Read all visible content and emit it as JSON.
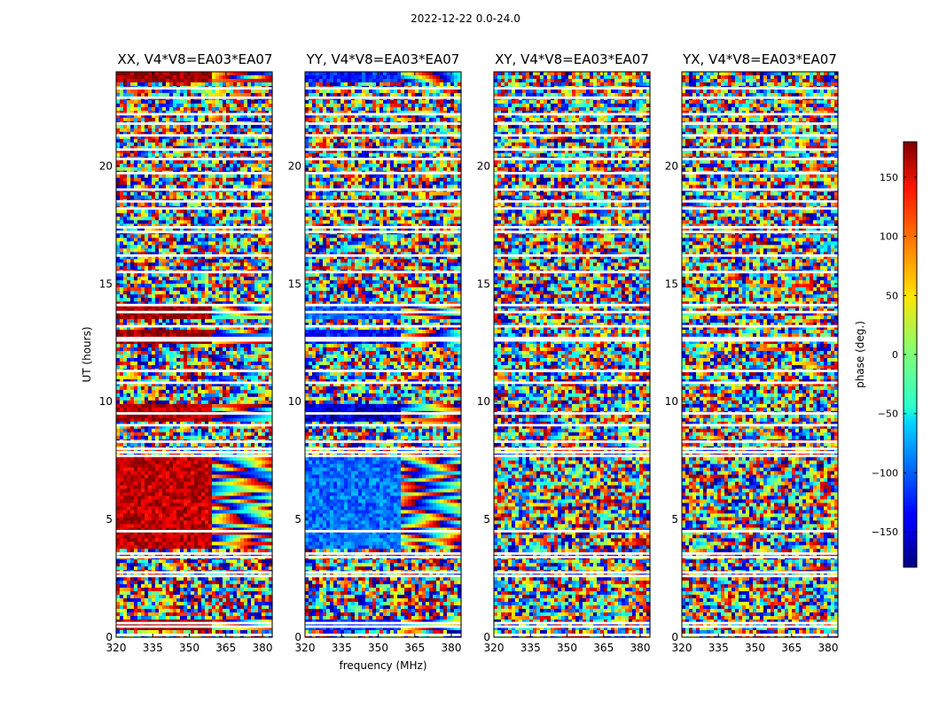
{
  "figure_title": "2022-12-22 0.0-24.0",
  "colorbar": {
    "label": "phase (deg.)",
    "range": [
      -180,
      180
    ],
    "ticks": [
      150,
      100,
      50,
      0,
      -50,
      -100,
      -150
    ],
    "tick_labels": [
      "150",
      "100",
      "50",
      "0",
      "−50",
      "−100",
      "−150"
    ],
    "colormap": "jet"
  },
  "chart_data": {
    "type": "heatmap",
    "title": "2022-12-22 0.0-24.0",
    "xlabel": "frequency (MHz)",
    "ylabel": "UT (hours)",
    "xlim": [
      320,
      384
    ],
    "ylim": [
      0,
      24
    ],
    "xticks": [
      320,
      335,
      350,
      365,
      380
    ],
    "xtick_labels": [
      "320",
      "335",
      "350",
      "365",
      "380"
    ],
    "yticks": [
      0,
      5,
      10,
      15,
      20
    ],
    "ytick_labels": [
      "0",
      "5",
      "10",
      "15",
      "20"
    ],
    "value_label": "phase (deg.)",
    "value_range": [
      -180,
      180
    ],
    "flagged_hours": [
      0.1,
      0.45,
      0.6,
      2.6,
      2.75,
      3.4,
      3.55,
      4.5,
      7.7,
      7.85,
      8.0,
      8.3,
      9.0,
      9.5,
      10.8,
      11.3,
      12.6,
      12.7,
      13.2,
      13.8,
      14.1,
      15.5,
      16.2,
      17.2,
      17.4,
      18.2,
      18.5,
      19.0,
      19.7,
      20.3,
      20.7,
      21.3,
      21.8,
      22.2,
      22.9,
      23.3
    ],
    "panels": [
      {
        "title": "XX, V4*V8=EA03*EA07",
        "correlation": "XX",
        "baseline": "V4*V8=EA03*EA07",
        "hot_bands": [
          {
            "ut": [
              3.8,
              7.7
            ],
            "phase": 155
          },
          {
            "ut": [
              9.2,
              9.9
            ],
            "phase": 165
          },
          {
            "ut": [
              13.5,
              14.1
            ],
            "phase": 170
          },
          {
            "ut": [
              12.4,
              13.0
            ],
            "phase": 175
          },
          {
            "ut": [
              23.6,
              24.0
            ],
            "phase": 170
          },
          {
            "ut": [
              0.3,
              0.7
            ],
            "phase": 170
          }
        ]
      },
      {
        "title": "YY, V4*V8=EA03*EA07",
        "correlation": "YY",
        "baseline": "V4*V8=EA03*EA07",
        "hot_bands": [
          {
            "ut": [
              3.8,
              7.7
            ],
            "phase": -95
          },
          {
            "ut": [
              9.2,
              9.9
            ],
            "phase": -150
          },
          {
            "ut": [
              13.5,
              14.1
            ],
            "phase": -100
          },
          {
            "ut": [
              12.4,
              13.0
            ],
            "phase": -130
          },
          {
            "ut": [
              23.6,
              24.0
            ],
            "phase": -120
          },
          {
            "ut": [
              0.3,
              0.7
            ],
            "phase": -120
          }
        ]
      },
      {
        "title": "XY, V4*V8=EA03*EA07",
        "correlation": "XY",
        "baseline": "V4*V8=EA03*EA07",
        "hot_bands": []
      },
      {
        "title": "YX, V4*V8=EA03*EA07",
        "correlation": "YX",
        "baseline": "V4*V8=EA03*EA07",
        "hot_bands": []
      }
    ]
  }
}
